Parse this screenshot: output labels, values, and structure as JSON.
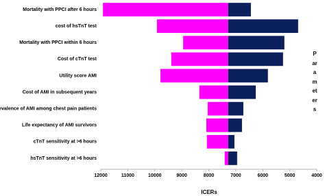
{
  "chart_data": {
    "type": "tornado",
    "y_label": "Parameters",
    "x_label": "ICERs",
    "categories": [
      "Mortality with PPCI after 6 hours",
      "cost of hsTnT test",
      "Mortality with PPCI within 6 hours",
      "Cost of cTnT test",
      "Utility score AMI",
      "Cost of AMI in subsequent years",
      "Prevalence of AMI among chest pain patients",
      "Life expectancy of AMI survivors",
      "cTnT sensitivity at >6 hours",
      "hsTnT sensitivity at >6 hours"
    ],
    "base": 7280,
    "series": [
      {
        "color": "#ff00ff",
        "values": [
          11920,
          9920,
          8950,
          9390,
          9790,
          8350,
          8040,
          8090,
          8070,
          7410
        ]
      },
      {
        "color": "#0b1f5c",
        "values": [
          6440,
          4690,
          5200,
          5250,
          5810,
          6260,
          6720,
          6770,
          7050,
          6950
        ]
      }
    ],
    "xlim": [
      12000,
      4000
    ],
    "xticks": [
      12000,
      11000,
      10000,
      9000,
      8000,
      7000,
      6000,
      5000,
      4000
    ]
  }
}
